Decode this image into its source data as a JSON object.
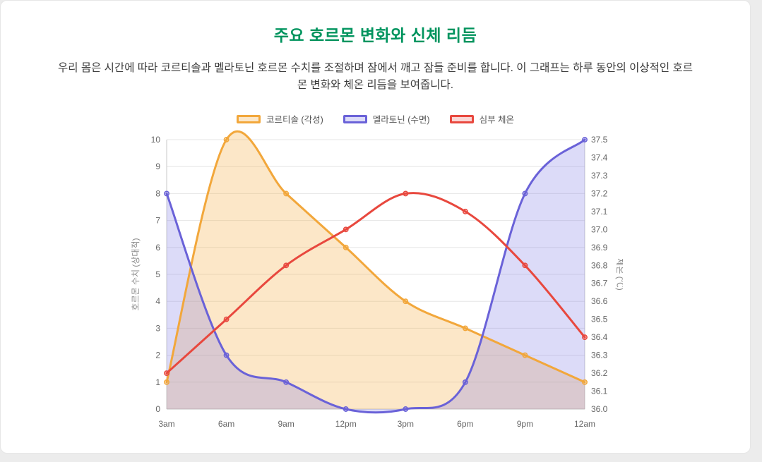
{
  "page": {
    "title": "주요 호르몬 변화와 신체 리듬",
    "title_color": "#00945e",
    "description": "우리 몸은 시간에 따라 코르티솔과 멜라토닌 호르몬 수치를 조절하며 잠에서 깨고 잠들 준비를 합니다. 이 그래프는 하루 동안의 이상적인 호르몬 변화와 체온 리듬을 보여줍니다."
  },
  "chart_data": {
    "type": "line",
    "x_labels": [
      "3am",
      "6am",
      "9am",
      "12pm",
      "3pm",
      "6pm",
      "9pm",
      "12am"
    ],
    "left_axis": {
      "title": "호르몬 수치 (상대적)",
      "min": 0,
      "max": 10,
      "step": 1
    },
    "right_axis": {
      "title": "체온 (℃)",
      "min": 36.0,
      "max": 37.5,
      "step": 0.1
    },
    "grid": true,
    "legend_position": "top",
    "series": [
      {
        "name": "코르티솔 (각성)",
        "axis": "left",
        "color": "#f2a73b",
        "fill": "rgba(244, 176, 72, 0.30)",
        "values": [
          1,
          10,
          8,
          6,
          4,
          3,
          2,
          1
        ]
      },
      {
        "name": "멜라토닌 (수면)",
        "axis": "left",
        "color": "#6a62d8",
        "fill": "rgba(131, 124, 231, 0.28)",
        "values": [
          8,
          2,
          1,
          0,
          0,
          1,
          8,
          10
        ]
      },
      {
        "name": "심부 체온",
        "axis": "right",
        "color": "#e8483e",
        "fill": null,
        "legend_fill": "rgba(232, 72, 62, 0.22)",
        "values": [
          36.2,
          36.5,
          36.8,
          37.0,
          37.2,
          37.1,
          36.8,
          36.4
        ]
      }
    ]
  }
}
